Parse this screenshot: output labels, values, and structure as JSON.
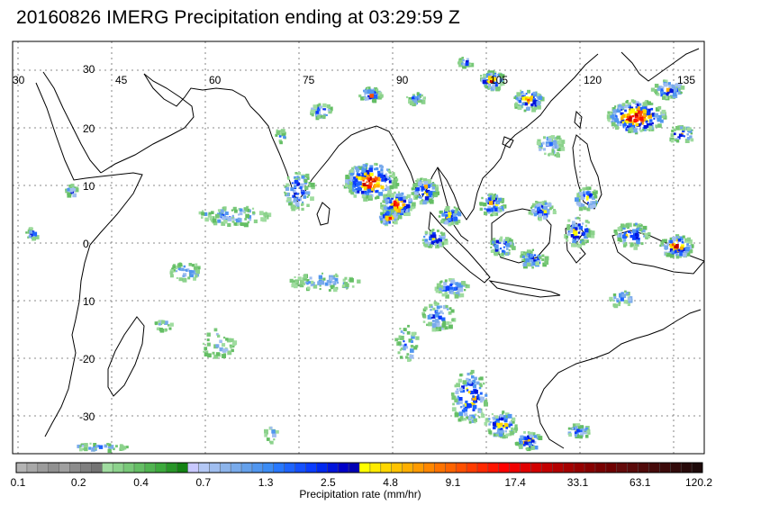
{
  "title": "20160826 IMERG Precipitation ending at 03:29:59 Z",
  "map": {
    "lon_labels": [
      {
        "lon": 30,
        "text": "30"
      },
      {
        "lon": 45,
        "text": "45"
      },
      {
        "lon": 60,
        "text": "60"
      },
      {
        "lon": 75,
        "text": "75"
      },
      {
        "lon": 90,
        "text": "90"
      },
      {
        "lon": 105,
        "text": "105"
      },
      {
        "lon": 120,
        "text": "120"
      },
      {
        "lon": 135,
        "text": "135"
      }
    ],
    "lat_labels": [
      {
        "lat": 30,
        "text": "30"
      },
      {
        "lat": 20,
        "text": "20"
      },
      {
        "lat": 10,
        "text": "10"
      },
      {
        "lat": 0,
        "text": "0"
      },
      {
        "lat": -10,
        "text": "10"
      },
      {
        "lat": -20,
        "text": "-20"
      },
      {
        "lat": -30,
        "text": "-30"
      }
    ],
    "lon_range": [
      30,
      140
    ],
    "lat_range": [
      -35,
      34
    ],
    "grid": true
  },
  "colorbar": {
    "label": "Precipitation rate (mm/hr)",
    "tick_labels": [
      "0.1",
      "0.2",
      "0.4",
      "0.7",
      "1.3",
      "2.5",
      "4.8",
      "9.1",
      "17.4",
      "33.1",
      "63.1",
      "120.2"
    ],
    "colors": [
      "#b4b4b4",
      "#a8a8a8",
      "#9c9c9c",
      "#909090",
      "#a0a0a0",
      "#8c8c8c",
      "#7f7f7f",
      "#737373",
      "#a0dca0",
      "#8cd28c",
      "#78c878",
      "#64be64",
      "#50b450",
      "#3caa3c",
      "#289628",
      "#148214",
      "#c8c8ff",
      "#b4c8f5",
      "#a0bef0",
      "#8cb4eb",
      "#78aaeb",
      "#64a0eb",
      "#5096f0",
      "#3c8cf5",
      "#2878ff",
      "#1e64ff",
      "#1450ff",
      "#0a3cff",
      "#0028f0",
      "#0014dc",
      "#0000c8",
      "#0000b4",
      "#ffff00",
      "#ffeb00",
      "#ffd700",
      "#ffc300",
      "#ffaf00",
      "#ff9b00",
      "#ff8700",
      "#ff7300",
      "#ff6400",
      "#ff5000",
      "#ff3c00",
      "#ff2800",
      "#ff1400",
      "#ff0000",
      "#f00000",
      "#e10000",
      "#d20000",
      "#c30000",
      "#b40000",
      "#a50000",
      "#960000",
      "#870000",
      "#780000",
      "#6e0000",
      "#640a0a",
      "#5a0a0a",
      "#500a0a",
      "#460a0a",
      "#3c0a0a",
      "#320a0a",
      "#280a0a",
      "#1e0a0a"
    ]
  }
}
